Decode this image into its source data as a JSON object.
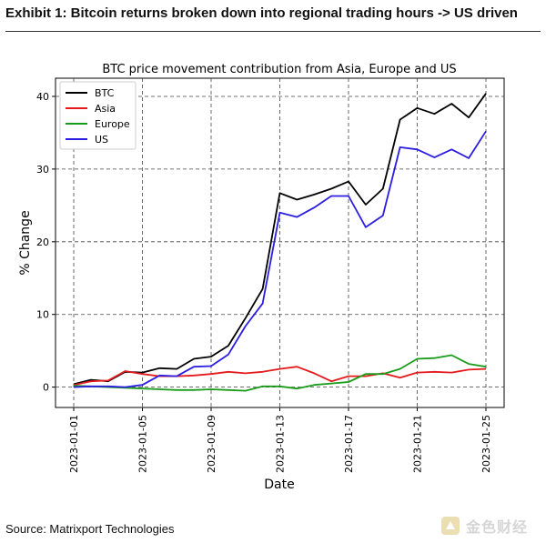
{
  "exhibit": {
    "title": "Exhibit 1: Bitcoin returns broken down into regional trading hours -> US driven",
    "source": "Source: Matrixport Technologies",
    "watermark_text": "金色财经"
  },
  "chart_data": {
    "type": "line",
    "title": "BTC price movement contribution from Asia, Europe and US",
    "xlabel": "Date",
    "ylabel": "% Change",
    "x": [
      "2023-01-01",
      "2023-01-02",
      "2023-01-03",
      "2023-01-04",
      "2023-01-05",
      "2023-01-06",
      "2023-01-07",
      "2023-01-08",
      "2023-01-09",
      "2023-01-10",
      "2023-01-11",
      "2023-01-12",
      "2023-01-13",
      "2023-01-14",
      "2023-01-15",
      "2023-01-16",
      "2023-01-17",
      "2023-01-18",
      "2023-01-19",
      "2023-01-20",
      "2023-01-21",
      "2023-01-22",
      "2023-01-23",
      "2023-01-24",
      "2023-01-25"
    ],
    "x_ticks": [
      "2023-01-01",
      "2023-01-05",
      "2023-01-09",
      "2023-01-13",
      "2023-01-17",
      "2023-01-21",
      "2023-01-25"
    ],
    "y_ticks": [
      0,
      10,
      20,
      30,
      40
    ],
    "ylim": [
      -2.8,
      42.5
    ],
    "grid": true,
    "legend_position": "top-left",
    "series": [
      {
        "name": "BTC",
        "color": "#000000",
        "values": [
          0.4,
          1.0,
          0.8,
          2.1,
          2.0,
          2.6,
          2.5,
          3.9,
          4.2,
          5.7,
          9.5,
          13.5,
          26.7,
          25.8,
          26.5,
          27.3,
          28.3,
          25.1,
          27.3,
          36.8,
          38.4,
          37.6,
          39.0,
          37.1,
          40.4
        ]
      },
      {
        "name": "Asia",
        "color": "#e41a1c",
        "values": [
          0.3,
          0.8,
          0.9,
          2.2,
          1.8,
          1.5,
          1.5,
          1.6,
          1.8,
          2.1,
          1.9,
          2.1,
          2.5,
          2.8,
          1.9,
          0.8,
          1.5,
          1.5,
          1.9,
          1.3,
          2.0,
          2.1,
          2.0,
          2.4,
          2.5
        ]
      },
      {
        "name": "Europe",
        "color": "#1a9c1a",
        "values": [
          0.2,
          0.1,
          0.0,
          -0.1,
          -0.2,
          -0.3,
          -0.4,
          -0.4,
          -0.3,
          -0.4,
          -0.5,
          0.1,
          0.1,
          -0.2,
          0.3,
          0.5,
          0.7,
          1.8,
          1.8,
          2.5,
          3.9,
          4.0,
          4.4,
          3.2,
          2.8
        ]
      },
      {
        "name": "US",
        "color": "#2b1ee0",
        "values": [
          0.0,
          0.1,
          0.1,
          0.0,
          0.3,
          1.6,
          1.5,
          2.8,
          2.9,
          4.5,
          8.4,
          11.5,
          24.0,
          23.4,
          24.7,
          26.3,
          26.3,
          22.0,
          23.6,
          33.0,
          32.7,
          31.6,
          32.7,
          31.5,
          35.2
        ]
      }
    ]
  }
}
